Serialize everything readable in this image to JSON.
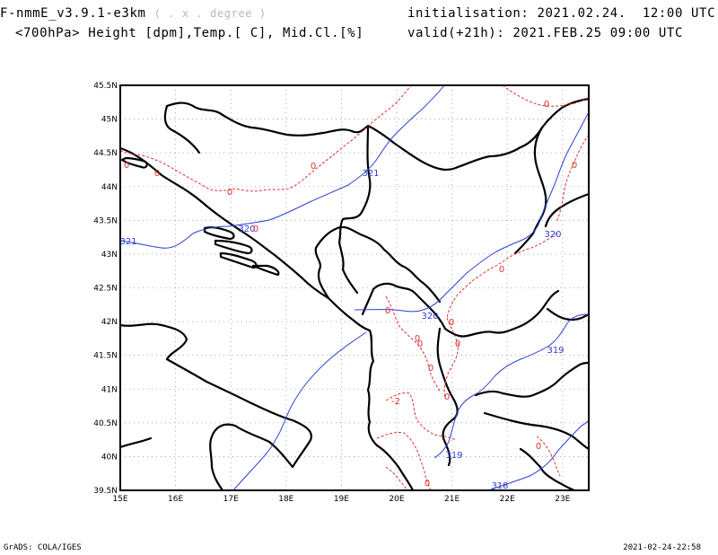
{
  "header": {
    "model": "F-nmmE_v3.9.1-e3km",
    "grid_note": "( . x . degree )",
    "fields": "<700hPa> Height [dpm],Temp.[ C], Mid.Cl.[%]",
    "init_label": "initialisation:",
    "init_value": "2021.02.24.  12:00 UTC",
    "valid_label": "valid(+21h):",
    "valid_value": "2021.FEB.25 09:00 UTC"
  },
  "footer": {
    "left": "GrADS: COLA/IGES",
    "right": "2021-02-24-22:58"
  },
  "map": {
    "lon_labels": [
      "15E",
      "16E",
      "17E",
      "18E",
      "19E",
      "20E",
      "21E",
      "22E",
      "23E"
    ],
    "lat_labels": [
      "45.5N",
      "45N",
      "44.5N",
      "44N",
      "43.5N",
      "43N",
      "42.5N",
      "42N",
      "41.5N",
      "41N",
      "40.5N",
      "40N",
      "39.5N"
    ],
    "height_color": "#2b3ed6",
    "temp_color": "#e03030",
    "height_labels": [
      "321",
      "320",
      "321",
      "320",
      "320",
      "319",
      "319",
      "318"
    ],
    "temp_labels": [
      "0",
      "0",
      "0",
      "0",
      "0",
      "0",
      "0",
      "0",
      "0",
      "0",
      "0",
      "0",
      "0",
      "0",
      "-2",
      "0",
      "0",
      "0"
    ]
  }
}
